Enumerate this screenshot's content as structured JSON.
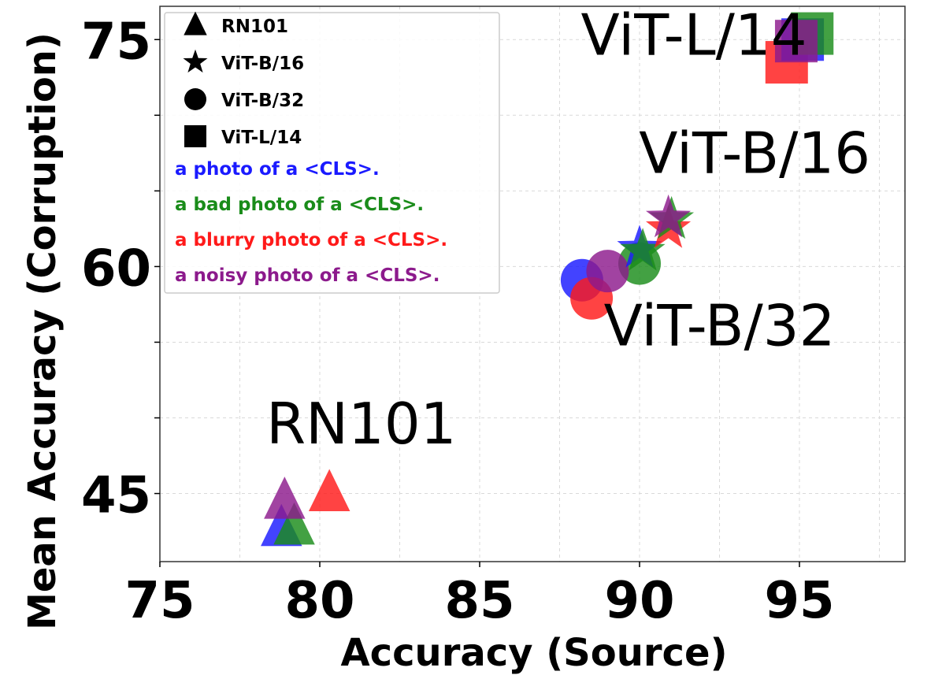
{
  "chart_data": {
    "type": "scatter",
    "xlabel": "Accuracy (Source)",
    "ylabel": "Mean Accuracy (Corruption)",
    "xlim": [
      75,
      98.3
    ],
    "ylim": [
      40.5,
      77.2
    ],
    "xticks": [
      75,
      80,
      85,
      90,
      95
    ],
    "yticks": [
      45,
      60,
      75
    ],
    "grid": true,
    "legend_position": "top-left",
    "models": [
      {
        "name": "RN101",
        "marker": "triangle",
        "label": "RN101"
      },
      {
        "name": "ViT-B/16",
        "marker": "star",
        "label": "ViT-B/16"
      },
      {
        "name": "ViT-B/32",
        "marker": "circle",
        "label": "ViT-B/32"
      },
      {
        "name": "ViT-L/14",
        "marker": "square",
        "label": "ViT-L/14"
      }
    ],
    "prompts": [
      {
        "text": "a photo of a <CLS>.",
        "color": "#1a1aff"
      },
      {
        "text": "a bad photo of a <CLS>.",
        "color": "#1a8c1a"
      },
      {
        "text": "a blurry photo of a <CLS>.",
        "color": "#ff1a1a"
      },
      {
        "text": "a noisy photo of a <CLS>.",
        "color": "#8c1a8c"
      }
    ],
    "points": [
      {
        "model": "RN101",
        "prompt": 0,
        "x": 78.8,
        "y": 42.7
      },
      {
        "model": "RN101",
        "prompt": 1,
        "x": 79.2,
        "y": 42.8
      },
      {
        "model": "RN101",
        "prompt": 3,
        "x": 78.9,
        "y": 44.5
      },
      {
        "model": "RN101",
        "prompt": 2,
        "x": 80.3,
        "y": 45.0
      },
      {
        "model": "ViT-B/32",
        "prompt": 0,
        "x": 88.2,
        "y": 59.1
      },
      {
        "model": "ViT-B/32",
        "prompt": 2,
        "x": 88.5,
        "y": 57.9
      },
      {
        "model": "ViT-B/32",
        "prompt": 1,
        "x": 90.0,
        "y": 60.2
      },
      {
        "model": "ViT-B/32",
        "prompt": 3,
        "x": 89.0,
        "y": 59.7
      },
      {
        "model": "ViT-B/16",
        "prompt": 0,
        "x": 90.0,
        "y": 61.2
      },
      {
        "model": "ViT-B/16",
        "prompt": 1,
        "x": 90.1,
        "y": 61.0
      },
      {
        "model": "ViT-B/16",
        "prompt": 2,
        "x": 90.9,
        "y": 62.5
      },
      {
        "model": "ViT-B/16",
        "prompt": 1,
        "x": 91.0,
        "y": 63.1
      },
      {
        "model": "ViT-B/16",
        "prompt": 3,
        "x": 90.9,
        "y": 63.2
      },
      {
        "model": "ViT-L/14",
        "prompt": 2,
        "x": 94.6,
        "y": 73.5
      },
      {
        "model": "ViT-L/14",
        "prompt": 0,
        "x": 95.1,
        "y": 75.0
      },
      {
        "model": "ViT-L/14",
        "prompt": 1,
        "x": 95.4,
        "y": 75.4
      },
      {
        "model": "ViT-L/14",
        "prompt": 3,
        "x": 94.9,
        "y": 74.9
      }
    ],
    "annotations": [
      {
        "text": "RN101",
        "x": 81.3,
        "y": 48.3
      },
      {
        "text": "ViT-B/32",
        "x": 92.5,
        "y": 54.8
      },
      {
        "text": "ViT-B/16",
        "x": 93.6,
        "y": 66.2
      },
      {
        "text": "ViT-L/14",
        "x": 91.7,
        "y": 74.0
      }
    ]
  }
}
